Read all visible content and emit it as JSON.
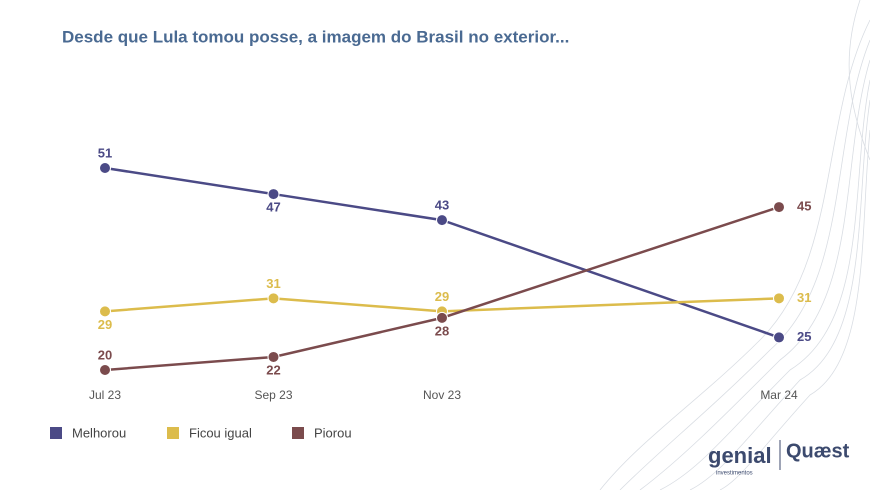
{
  "chart_data": {
    "type": "line",
    "title": "Desde que Lula tomou posse, a imagem do Brasil no exterior...",
    "x": [
      "Jul 23",
      "Sep 23",
      "Nov 23",
      "Mar 24"
    ],
    "series": [
      {
        "name": "Melhorou",
        "color": "#4b4a86",
        "values": [
          51,
          47,
          43,
          25
        ]
      },
      {
        "name": "Ficou igual",
        "color": "#dcbc4c",
        "values": [
          29,
          31,
          29,
          31
        ]
      },
      {
        "name": "Piorou",
        "color": "#7b4b4d",
        "values": [
          20,
          22,
          28,
          45
        ]
      }
    ],
    "legend": "bottom-left",
    "logos": [
      "genial",
      "investimentos",
      "Quæst"
    ]
  }
}
